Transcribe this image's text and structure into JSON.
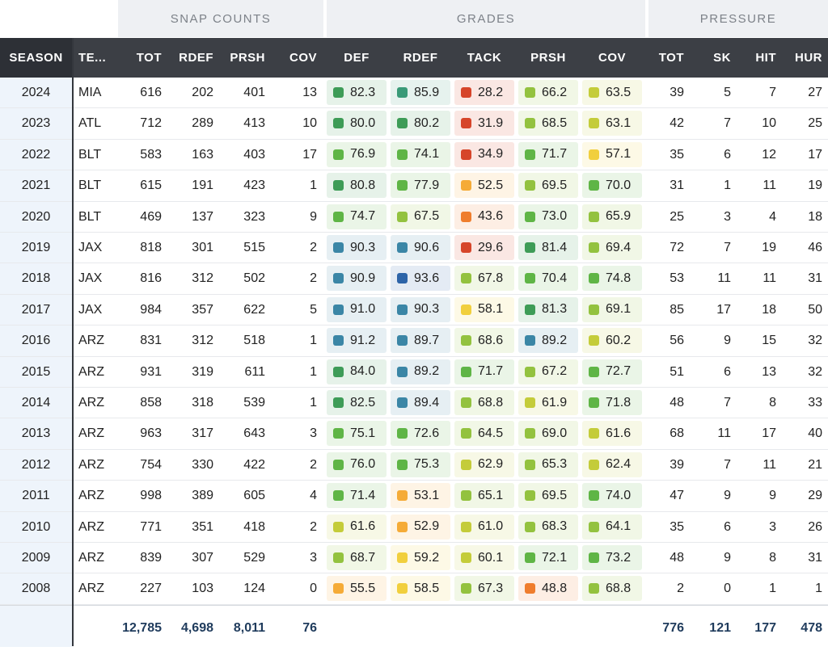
{
  "groups": {
    "snap": "SNAP COUNTS",
    "grades": "GRADES",
    "pressure": "PRESSURE"
  },
  "headers": [
    "SEASON",
    "TE...",
    "TOT",
    "RDEF",
    "PRSH",
    "COV",
    "DEF",
    "RDEF",
    "TACK",
    "PRSH",
    "COV",
    "TOT",
    "SK",
    "HIT",
    "HUR"
  ],
  "rows": [
    {
      "season": "2024",
      "team": "MIA",
      "tot": "616",
      "rdef": "202",
      "prsh": "401",
      "cov": "13",
      "g": [
        "82.3",
        "85.9",
        "28.2",
        "66.2",
        "63.5"
      ],
      "ptot": "39",
      "sk": "5",
      "hit": "7",
      "hur": "27"
    },
    {
      "season": "2023",
      "team": "ATL",
      "tot": "712",
      "rdef": "289",
      "prsh": "413",
      "cov": "10",
      "g": [
        "80.0",
        "80.2",
        "31.9",
        "68.5",
        "63.1"
      ],
      "ptot": "42",
      "sk": "7",
      "hit": "10",
      "hur": "25"
    },
    {
      "season": "2022",
      "team": "BLT",
      "tot": "583",
      "rdef": "163",
      "prsh": "403",
      "cov": "17",
      "g": [
        "76.9",
        "74.1",
        "34.9",
        "71.7",
        "57.1"
      ],
      "ptot": "35",
      "sk": "6",
      "hit": "12",
      "hur": "17"
    },
    {
      "season": "2021",
      "team": "BLT",
      "tot": "615",
      "rdef": "191",
      "prsh": "423",
      "cov": "1",
      "g": [
        "80.8",
        "77.9",
        "52.5",
        "69.5",
        "70.0"
      ],
      "ptot": "31",
      "sk": "1",
      "hit": "11",
      "hur": "19"
    },
    {
      "season": "2020",
      "team": "BLT",
      "tot": "469",
      "rdef": "137",
      "prsh": "323",
      "cov": "9",
      "g": [
        "74.7",
        "67.5",
        "43.6",
        "73.0",
        "65.9"
      ],
      "ptot": "25",
      "sk": "3",
      "hit": "4",
      "hur": "18"
    },
    {
      "season": "2019",
      "team": "JAX",
      "tot": "818",
      "rdef": "301",
      "prsh": "515",
      "cov": "2",
      "g": [
        "90.3",
        "90.6",
        "29.6",
        "81.4",
        "69.4"
      ],
      "ptot": "72",
      "sk": "7",
      "hit": "19",
      "hur": "46"
    },
    {
      "season": "2018",
      "team": "JAX",
      "tot": "816",
      "rdef": "312",
      "prsh": "502",
      "cov": "2",
      "g": [
        "90.9",
        "93.6",
        "67.8",
        "70.4",
        "74.8"
      ],
      "ptot": "53",
      "sk": "11",
      "hit": "11",
      "hur": "31"
    },
    {
      "season": "2017",
      "team": "JAX",
      "tot": "984",
      "rdef": "357",
      "prsh": "622",
      "cov": "5",
      "g": [
        "91.0",
        "90.3",
        "58.1",
        "81.3",
        "69.1"
      ],
      "ptot": "85",
      "sk": "17",
      "hit": "18",
      "hur": "50"
    },
    {
      "season": "2016",
      "team": "ARZ",
      "tot": "831",
      "rdef": "312",
      "prsh": "518",
      "cov": "1",
      "g": [
        "91.2",
        "89.7",
        "68.6",
        "89.2",
        "60.2"
      ],
      "ptot": "56",
      "sk": "9",
      "hit": "15",
      "hur": "32"
    },
    {
      "season": "2015",
      "team": "ARZ",
      "tot": "931",
      "rdef": "319",
      "prsh": "611",
      "cov": "1",
      "g": [
        "84.0",
        "89.2",
        "71.7",
        "67.2",
        "72.7"
      ],
      "ptot": "51",
      "sk": "6",
      "hit": "13",
      "hur": "32"
    },
    {
      "season": "2014",
      "team": "ARZ",
      "tot": "858",
      "rdef": "318",
      "prsh": "539",
      "cov": "1",
      "g": [
        "82.5",
        "89.4",
        "68.8",
        "61.9",
        "71.8"
      ],
      "ptot": "48",
      "sk": "7",
      "hit": "8",
      "hur": "33"
    },
    {
      "season": "2013",
      "team": "ARZ",
      "tot": "963",
      "rdef": "317",
      "prsh": "643",
      "cov": "3",
      "g": [
        "75.1",
        "72.6",
        "64.5",
        "69.0",
        "61.6"
      ],
      "ptot": "68",
      "sk": "11",
      "hit": "17",
      "hur": "40"
    },
    {
      "season": "2012",
      "team": "ARZ",
      "tot": "754",
      "rdef": "330",
      "prsh": "422",
      "cov": "2",
      "g": [
        "76.0",
        "75.3",
        "62.9",
        "65.3",
        "62.4"
      ],
      "ptot": "39",
      "sk": "7",
      "hit": "11",
      "hur": "21"
    },
    {
      "season": "2011",
      "team": "ARZ",
      "tot": "998",
      "rdef": "389",
      "prsh": "605",
      "cov": "4",
      "g": [
        "71.4",
        "53.1",
        "65.1",
        "69.5",
        "74.0"
      ],
      "ptot": "47",
      "sk": "9",
      "hit": "9",
      "hur": "29"
    },
    {
      "season": "2010",
      "team": "ARZ",
      "tot": "771",
      "rdef": "351",
      "prsh": "418",
      "cov": "2",
      "g": [
        "61.6",
        "52.9",
        "61.0",
        "68.3",
        "64.1"
      ],
      "ptot": "35",
      "sk": "6",
      "hit": "3",
      "hur": "26"
    },
    {
      "season": "2009",
      "team": "ARZ",
      "tot": "839",
      "rdef": "307",
      "prsh": "529",
      "cov": "3",
      "g": [
        "68.7",
        "59.2",
        "60.1",
        "72.1",
        "73.2"
      ],
      "ptot": "48",
      "sk": "9",
      "hit": "8",
      "hur": "31"
    },
    {
      "season": "2008",
      "team": "ARZ",
      "tot": "227",
      "rdef": "103",
      "prsh": "124",
      "cov": "0",
      "g": [
        "55.5",
        "58.5",
        "67.3",
        "48.8",
        "68.8"
      ],
      "ptot": "2",
      "sk": "0",
      "hit": "1",
      "hur": "1"
    }
  ],
  "totals": {
    "tot": "12,785",
    "rdef": "4,698",
    "prsh": "8,011",
    "cov": "76",
    "ptot": "776",
    "sk": "121",
    "hit": "177",
    "hur": "478"
  },
  "grade_colors": {
    "blue_dark": "#2d64a8",
    "blue": "#3b86a6",
    "teal": "#3a9a78",
    "green_dark": "#3e9c57",
    "green": "#5fb546",
    "lime": "#93c23f",
    "olive": "#c4cc3a",
    "yellow": "#f1cf3d",
    "orange_light": "#f5ab37",
    "orange": "#ef7d2d",
    "red": "#d6452a"
  }
}
